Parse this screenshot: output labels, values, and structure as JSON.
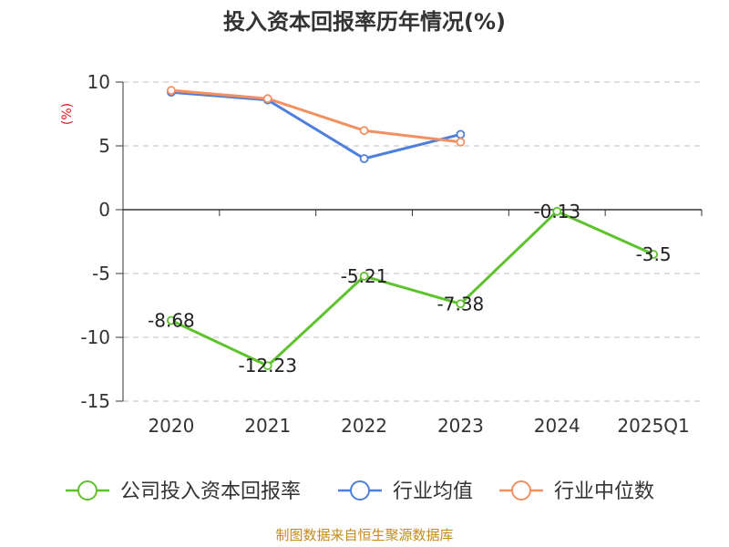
{
  "chart_data": {
    "type": "line",
    "title": "投入资本回报率历年情况(%)",
    "ylabel": "(%)",
    "xlabel": "",
    "categories": [
      "2020",
      "2021",
      "2022",
      "2023",
      "2024",
      "2025Q1"
    ],
    "ylim": [
      -15,
      10
    ],
    "yticks": [
      10,
      5,
      0,
      -5,
      -10,
      -15
    ],
    "grid": true,
    "legend_position": "bottom",
    "series": [
      {
        "name": "公司投入资本回报率",
        "color": "#5dc32c",
        "values": [
          -8.68,
          -12.23,
          -5.21,
          -7.38,
          -0.13,
          -3.5
        ],
        "labels": [
          "-8.68",
          "-12.23",
          "-5.21",
          "-7.38",
          "-0.13",
          "-3.5"
        ],
        "show_labels": true
      },
      {
        "name": "行业均值",
        "color": "#4f7fdc",
        "values": [
          9.2,
          8.6,
          4.0,
          5.9,
          null,
          null
        ],
        "show_labels": false
      },
      {
        "name": "行业中位数",
        "color": "#f39062",
        "values": [
          9.35,
          8.7,
          6.2,
          5.3,
          null,
          null
        ],
        "show_labels": false
      }
    ]
  },
  "source": "制图数据来自恒生聚源数据库"
}
